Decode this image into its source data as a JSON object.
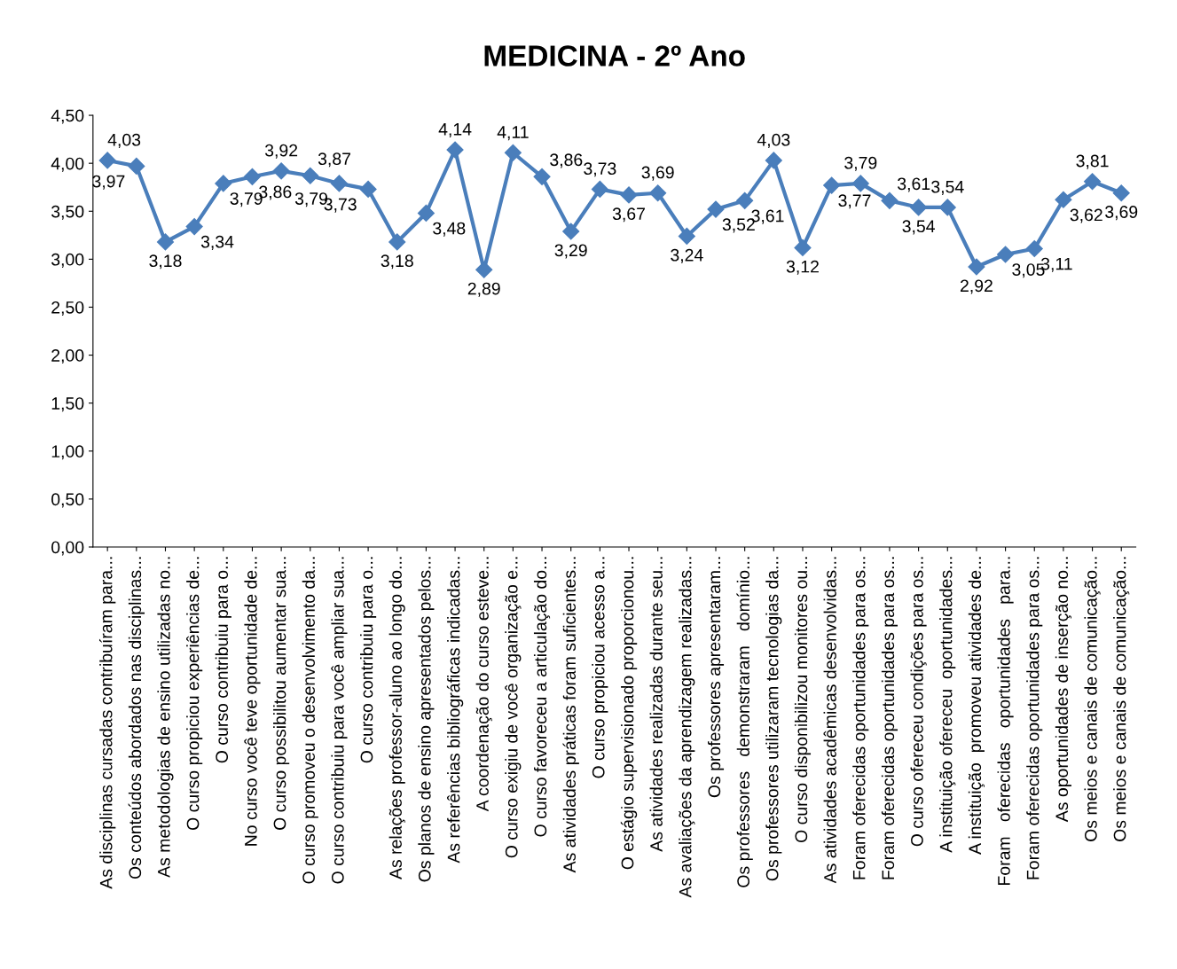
{
  "chart_data": {
    "type": "line",
    "title": "MEDICINA - 2º Ano",
    "categories": [
      "As disciplinas cursadas contribuíram para...",
      "Os conteúdos abordados nas disciplinas...",
      "As metodologias de ensino utilizadas no...",
      "O curso propiciou experiências de...",
      "O curso contribuiu para o...",
      "No curso você teve oportunidade de...",
      "O curso possibilitou aumentar sua...",
      "O curso promoveu o desenvolvimento da...",
      "O curso contribuiu para você ampliar sua...",
      "O curso contribuiu para o...",
      "As relações professor-aluno ao longo do...",
      "Os planos de ensino apresentados pelos...",
      "As referências bibliográficas indicadas...",
      "A coordenação do curso esteve...",
      "O curso exigiu de você organização e...",
      "O curso favoreceu a articulação do...",
      "As atividades práticas foram suficientes...",
      "O curso propiciou acesso a...",
      "O estágio supervisionado proporcionou...",
      "As atividades realizadas durante seu...",
      "As avaliações da aprendizagem realizadas...",
      "Os professores apresentaram...",
      "Os professores   demonstraram   domínio...",
      "Os professores utilizaram tecnologias da...",
      "O curso disponibilizou monitores ou...",
      "As atividades acadêmicas desenvolvidas...",
      "Foram oferecidas oportunidades para os...",
      "Foram oferecidas oportunidades para os...",
      "O curso ofereceu condições para os...",
      "A instituição ofereceu  oportunidades...",
      "A instituição  promoveu atividades de...",
      "Foram   oferecidas   oportunidades   para...",
      "Foram oferecidas oportunidades para os...",
      "As oportunidades de inserção no...",
      "Os meios e canais de comunicação...",
      "Os meios e canais de comunicação..."
    ],
    "series": [
      {
        "color": "#4a7ebb",
        "values": [
          4.03,
          3.97,
          3.18,
          3.34,
          3.79,
          3.86,
          3.92,
          3.87,
          3.79,
          3.73,
          3.18,
          3.48,
          4.14,
          2.89,
          4.11,
          3.86,
          3.29,
          3.73,
          3.67,
          3.69,
          3.24,
          3.52,
          3.61,
          4.03,
          3.12,
          3.77,
          3.79,
          3.61,
          3.54,
          3.54,
          2.92,
          3.05,
          3.11,
          3.62,
          3.81,
          3.69
        ],
        "value_labels": [
          "4,03",
          "3,97",
          "3,18",
          "3,34",
          "3,79",
          "3,86",
          "3,92",
          "3,87",
          "3,79",
          "3,73",
          "3,18",
          "3,48",
          "4,14",
          "2,89",
          "4,11",
          "3,86",
          "3,29",
          "3,73",
          "3,67",
          "3,69",
          "3,24",
          "3,52",
          "3,61",
          "4,03",
          "3,12",
          "3,77",
          "3,79",
          "3,61",
          "3,54",
          "3,54",
          "2,92",
          "3,05",
          "3,11",
          "3,62",
          "3,81",
          "3,69"
        ]
      }
    ],
    "ylim": [
      0,
      4.5
    ],
    "yticks": [
      {
        "value": 0,
        "label": "0,00"
      },
      {
        "value": 0.5,
        "label": "0,50"
      },
      {
        "value": 1,
        "label": "1,00"
      },
      {
        "value": 1.5,
        "label": "1,50"
      },
      {
        "value": 2,
        "label": "2,00"
      },
      {
        "value": 2.5,
        "label": "2,50"
      },
      {
        "value": 3,
        "label": "3,00"
      },
      {
        "value": 3.5,
        "label": "3,50"
      },
      {
        "value": 4,
        "label": "4,00"
      },
      {
        "value": 4.5,
        "label": "4,50"
      }
    ],
    "marker": "diamond",
    "line_style": "solid",
    "grid": false,
    "legend": false
  }
}
